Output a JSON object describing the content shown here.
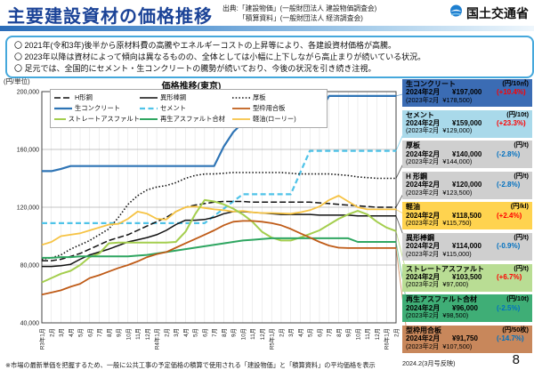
{
  "header": {
    "title": "主要建設資材の価格推移",
    "source_line1": "出典:「建設物価」(一般財団法人 建設物価調査会)",
    "source_line2": "「積算資料」(一般財団法人 経済調査会)",
    "agency": "国土交通省"
  },
  "notice": {
    "lines": [
      "〇 2021年(令和3年)後半から原材料費の高騰やエネルギーコストの上昇等により、各建設資材価格が高騰。",
      "〇 2023年以降は資材によって傾向は異なるものの、全体としては小幅に上下しながら高止まりが続いている状況。",
      "〇 足元では、全国的にセメント・生コンクリートの騰勢が続いており、今後の状況を引き続き注視。"
    ]
  },
  "chart_data": {
    "type": "line",
    "title": "価格推移(東京)",
    "ylabel": "(円/単位)",
    "ylim": [
      40000,
      200000
    ],
    "grid": true,
    "legend_position": "top-inside",
    "y_ticks": [
      {
        "label": "200,000",
        "value": 200000
      },
      {
        "label": "160,000",
        "value": 160000
      },
      {
        "label": "120,000",
        "value": 120000
      },
      {
        "label": "80,000",
        "value": 80000
      },
      {
        "label": "40,000",
        "value": 40000
      }
    ],
    "x": [
      "R3年1月",
      "2月",
      "3月",
      "4月",
      "5月",
      "6月",
      "7月",
      "8月",
      "9月",
      "10月",
      "11月",
      "12月",
      "R4年1月",
      "2月",
      "3月",
      "4月",
      "5月",
      "6月",
      "7月",
      "8月",
      "9月",
      "10月",
      "11月",
      "12月",
      "R5年1月",
      "2月",
      "3月",
      "4月",
      "5月",
      "6月",
      "7月",
      "8月",
      "9月",
      "10月",
      "11月",
      "12月",
      "R6年1月",
      "2月"
    ],
    "legend_order": [
      "H形鋼",
      "異形棒鋼",
      "厚板",
      "生コンクリート",
      "セメント",
      "型枠用合板",
      "ストレートアスファルト",
      "再生アスファルト合材",
      "軽油(ローリー)"
    ],
    "series": [
      {
        "key": "nama_con",
        "label": "生コンクリート",
        "color": "#2e74b5",
        "dash": "",
        "width": 2.2,
        "values": [
          145000,
          145000,
          146500,
          148500,
          148500,
          148500,
          148500,
          148500,
          148500,
          148500,
          148500,
          148500,
          148500,
          148500,
          148500,
          148500,
          148500,
          148500,
          148500,
          162000,
          172000,
          178500,
          178500,
          178500,
          178500,
          178500,
          178500,
          178500,
          178500,
          186000,
          197000,
          197000,
          197000,
          197000,
          197000,
          197000,
          197000,
          197000
        ]
      },
      {
        "key": "cement",
        "label": "セメント",
        "color": "#4fc3e8",
        "dash": "6,3.5",
        "width": 2.2,
        "values": [
          109000,
          109000,
          109000,
          109000,
          109000,
          109000,
          109000,
          109000,
          109000,
          109000,
          109000,
          109000,
          109000,
          109000,
          109000,
          109000,
          109000,
          109000,
          114000,
          119000,
          124000,
          129000,
          129000,
          129000,
          129000,
          129000,
          129000,
          144000,
          159000,
          159000,
          159000,
          159000,
          159000,
          159000,
          159000,
          159000,
          159000,
          159000
        ]
      },
      {
        "key": "atsuita",
        "label": "厚板",
        "color": "#111111",
        "dash": "1.5,2.2",
        "width": 1.6,
        "values": [
          84000,
          85000,
          87000,
          91000,
          94000,
          97000,
          101000,
          105000,
          113000,
          122000,
          128000,
          132000,
          134000,
          135000,
          137000,
          140000,
          142000,
          143000,
          143000,
          143500,
          144000,
          144000,
          144000,
          144000,
          144000,
          144000,
          143500,
          143000,
          143000,
          143000,
          143000,
          142500,
          142000,
          141000,
          140500,
          140000,
          140000,
          140000
        ]
      },
      {
        "key": "h_keiko",
        "label": "H形鋼",
        "color": "#111111",
        "dash": "7,3",
        "width": 1.5,
        "values": [
          83000,
          83000,
          84000,
          86000,
          88000,
          91000,
          94000,
          97000,
          99000,
          101000,
          104000,
          107000,
          110000,
          113000,
          117000,
          120000,
          121500,
          122500,
          123500,
          124000,
          124000,
          124000,
          123500,
          123500,
          123500,
          123500,
          123500,
          123500,
          123500,
          123000,
          122500,
          122000,
          121500,
          121000,
          120500,
          120000,
          120000,
          120000
        ]
      },
      {
        "key": "ikei_boko",
        "label": "異形棒鋼",
        "color": "#111111",
        "dash": "",
        "width": 1.5,
        "values": [
          79000,
          79000,
          79500,
          80500,
          84000,
          87000,
          89000,
          91000,
          93500,
          96000,
          97500,
          99000,
          101000,
          104000,
          108000,
          111000,
          111000,
          111500,
          113000,
          115500,
          117000,
          117000,
          116500,
          116000,
          115500,
          115000,
          115000,
          115000,
          115000,
          114500,
          114500,
          114500,
          114500,
          114000,
          114000,
          114000,
          114000,
          114000
        ]
      },
      {
        "key": "keiyu",
        "label": "軽油(ローリー)",
        "color": "#f6c344",
        "dash": "",
        "width": 1.8,
        "values": [
          94000,
          96000,
          100000,
          101000,
          102000,
          104000,
          106000,
          108000,
          108500,
          112000,
          117000,
          115500,
          112000,
          111500,
          117000,
          120000,
          120500,
          119500,
          118500,
          118000,
          117000,
          117500,
          116500,
          116000,
          116000,
          115750,
          115500,
          116500,
          118000,
          120500,
          125000,
          128000,
          124000,
          120000,
          118500,
          118500,
          118500,
          118500
        ]
      },
      {
        "key": "st_asphalt",
        "label": "ストレートアスファルト",
        "color": "#a4ce4e",
        "dash": "",
        "width": 2,
        "values": [
          68000,
          71000,
          74000,
          76000,
          80000,
          85500,
          88000,
          95000,
          95500,
          95500,
          95500,
          95500,
          95500,
          95500,
          96000,
          103000,
          115000,
          125000,
          124000,
          122000,
          119000,
          115000,
          110000,
          103000,
          99000,
          97000,
          97000,
          99000,
          101500,
          104000,
          108000,
          112000,
          115000,
          117500,
          115000,
          110000,
          106000,
          103500
        ]
      },
      {
        "key": "saisei",
        "label": "再生アスファルト合材",
        "color": "#2fa661",
        "dash": "",
        "width": 2,
        "values": [
          85000,
          85000,
          85500,
          85500,
          86000,
          86000,
          86000,
          86000,
          86000,
          86000,
          86500,
          87000,
          88000,
          89000,
          90000,
          91000,
          92000,
          93000,
          94000,
          95000,
          96000,
          97000,
          97500,
          98000,
          98500,
          98500,
          98500,
          98500,
          98500,
          98500,
          98500,
          98500,
          98500,
          96000,
          96000,
          96000,
          96000,
          96000
        ]
      },
      {
        "key": "katawaku",
        "label": "型枠用合板",
        "color": "#bf5b17",
        "dash": "",
        "width": 1.8,
        "values": [
          59500,
          61000,
          62500,
          65000,
          67000,
          71000,
          73000,
          75500,
          78000,
          80000,
          82500,
          85500,
          87500,
          89000,
          92000,
          95000,
          98000,
          101000,
          104000,
          107500,
          110000,
          110500,
          110500,
          110000,
          109000,
          107500,
          105000,
          102000,
          99000,
          96000,
          93500,
          92000,
          91750,
          91750,
          91750,
          91750,
          91750,
          91750
        ]
      }
    ]
  },
  "sidebar": {
    "cards": [
      {
        "series_key": "nama_con",
        "name": "生コンクリート",
        "unit": "(円/10㎥)",
        "cur_label": "2024年2月",
        "cur_value": "¥197,000",
        "change": "(+10.4%)",
        "dir": "up",
        "prev_label": "(2023年2月",
        "prev_value": "¥178,500)",
        "bg": "#3b6cb4"
      },
      {
        "series_key": "cement",
        "name": "セメント",
        "unit": "(円/10t)",
        "cur_label": "2024年2月",
        "cur_value": "¥159,000",
        "change": "(+23.3%)",
        "dir": "up",
        "prev_label": "(2023年2月",
        "prev_value": "¥129,000)",
        "bg": "#a9d9ea"
      },
      {
        "series_key": "atsuita",
        "name": "厚板",
        "unit": "(円/t)",
        "cur_label": "2024年2月",
        "cur_value": "¥140,000",
        "change": "(-2.8%)",
        "dir": "down",
        "prev_label": "(2023年2月",
        "prev_value": "¥144,000)",
        "bg": "#cfcfcf"
      },
      {
        "series_key": "h_keiko",
        "name": "H 形鋼",
        "unit": "(円/t)",
        "cur_label": "2024年2月",
        "cur_value": "¥120,000",
        "change": "(-2.8%)",
        "dir": "down",
        "prev_label": "(2023年2月",
        "prev_value": "¥123,500)",
        "bg": "#cfcfcf"
      },
      {
        "series_key": "keiyu",
        "name": "軽油",
        "unit": "(円/kl)",
        "cur_label": "2024年2月",
        "cur_value": "¥118,500",
        "change": "(+2.4%)",
        "dir": "up",
        "prev_label": "(2023年2月",
        "prev_value": "¥115,750)",
        "bg": "#ffd34f"
      },
      {
        "series_key": "ikei_boko",
        "name": "異形棒鋼",
        "unit": "(円/t)",
        "cur_label": "2024年2月",
        "cur_value": "¥114,000",
        "change": "(-0.9%)",
        "dir": "down",
        "prev_label": "(2023年2月",
        "prev_value": "¥115,000)",
        "bg": "#cfcfcf"
      },
      {
        "series_key": "st_asphalt",
        "name": "ストレートアスファルト",
        "unit": "(円/t)",
        "cur_label": "2024年2月",
        "cur_value": "¥103,500",
        "change": "(+6.7%)",
        "dir": "up",
        "prev_label": "(2023年2月",
        "prev_value": "¥97,000)",
        "bg": "#b9dd94"
      },
      {
        "series_key": "saisei",
        "name": "再生アスファルト合材",
        "unit": "(円/10t)",
        "cur_label": "2024年2月",
        "cur_value": "¥96,000",
        "change": "(-2.5%)",
        "dir": "down",
        "prev_label": "(2023年2月",
        "prev_value": "¥98,500)",
        "bg": "#3fae76"
      },
      {
        "series_key": "katawaku",
        "name": "型枠用合板",
        "unit": "(円/50枚)",
        "cur_label": "2024年2月",
        "cur_value": "¥91,750",
        "change": "(-14.7%)",
        "dir": "down",
        "prev_label": "(2023年2月",
        "prev_value": "¥107,500)",
        "bg": "#c8875b"
      }
    ],
    "up_color": "#ff0000",
    "down_color": "#0070c0"
  },
  "footer": {
    "note": "※市場の最新単価を把握するため、一般に公共工事の予定価格の積算で使用される「建設物価」と「積算資料」の平均価格を表示",
    "date_note": "2024.2(3月号反映)",
    "page": "8"
  }
}
